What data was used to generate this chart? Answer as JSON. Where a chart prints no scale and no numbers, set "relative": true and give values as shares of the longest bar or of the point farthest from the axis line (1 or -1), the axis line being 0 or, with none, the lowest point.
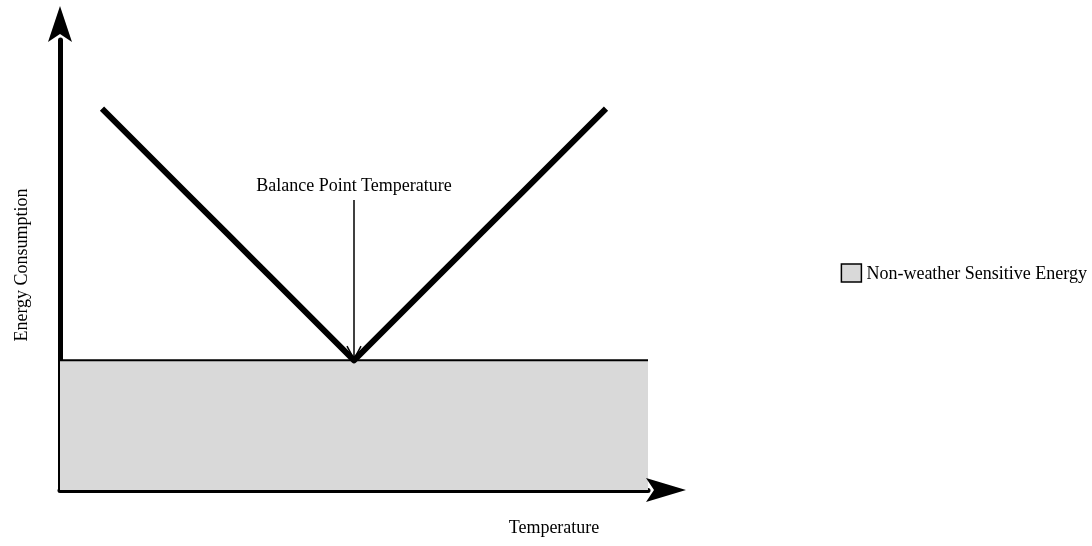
{
  "chart_data": {
    "type": "line",
    "relative": true,
    "xlabel": "Temperature",
    "ylabel": "Energy Consumption",
    "annotations": [
      "Balance Point Temperature"
    ],
    "categories": [
      null,
      null,
      null,
      null,
      null,
      null,
      null,
      null,
      null,
      null,
      null,
      null,
      null,
      null,
      null
    ],
    "series": [
      {
        "type": "area",
        "name": "Non-weather Sensitive Energy",
        "color": "#d9d9d9",
        "values": [
          0.34,
          0.34,
          0.34,
          0.34,
          0.34,
          0.34,
          0.34,
          0.34,
          0.34,
          0.34,
          0.34,
          0.34,
          0.34,
          0.34,
          0.34
        ]
      },
      {
        "type": "line",
        "color": "#000000",
        "values": [
          null,
          1,
          0.89,
          0.78,
          0.67,
          0.56,
          0.45,
          0.34,
          0.45,
          0.56,
          0.67,
          0.78,
          0.89,
          1,
          null
        ]
      }
    ],
    "legend": "right",
    "grid": false,
    "marker": "none",
    "line_style": "solid"
  }
}
